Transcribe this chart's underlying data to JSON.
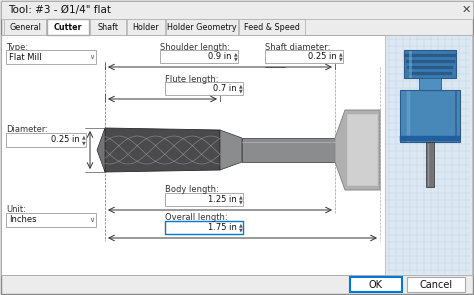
{
  "title": "Tool: #3 - Ø1/4\" flat",
  "tabs": [
    "General",
    "Cutter",
    "Shaft",
    "Holder",
    "Holder Geometry",
    "Feed & Speed"
  ],
  "bg_color": "#ececec",
  "white": "#ffffff",
  "border_color": "#aaaaaa",
  "blue_border": "#0078d7",
  "grid_bg": "#dce8f2",
  "type_label": "Type:",
  "type_value": "Flat Mill",
  "diameter_label": "Diameter:",
  "diameter_value": "0.25 in",
  "unit_label": "Unit:",
  "unit_value": "Inches",
  "shoulder_label": "Shoulder length:",
  "shoulder_value": "0.9 in",
  "shaft_dia_label": "Shaft diameter:",
  "shaft_dia_value": "0.25 in",
  "flute_label": "Flute length:",
  "flute_value": "0.7 in",
  "body_label": "Body length:",
  "body_value": "1.25 in",
  "overall_label": "Overall length:",
  "overall_value": "1.75 in",
  "ok_text": "OK",
  "cancel_text": "Cancel",
  "steel_dark": "#4a4a4c",
  "steel_mid": "#737375",
  "steel_color": "#8a8c8e",
  "steel_light": "#b8babb",
  "holder_gray": "#b0b0b0",
  "holder_face": "#d0d0d0",
  "blue_top": "#3a7ab0",
  "blue_main": "#5090c0",
  "blue_body": "#4888b8",
  "blue_light": "#80b8d8",
  "blue_dark": "#2a5a88",
  "blue_groove": "#2060a0"
}
